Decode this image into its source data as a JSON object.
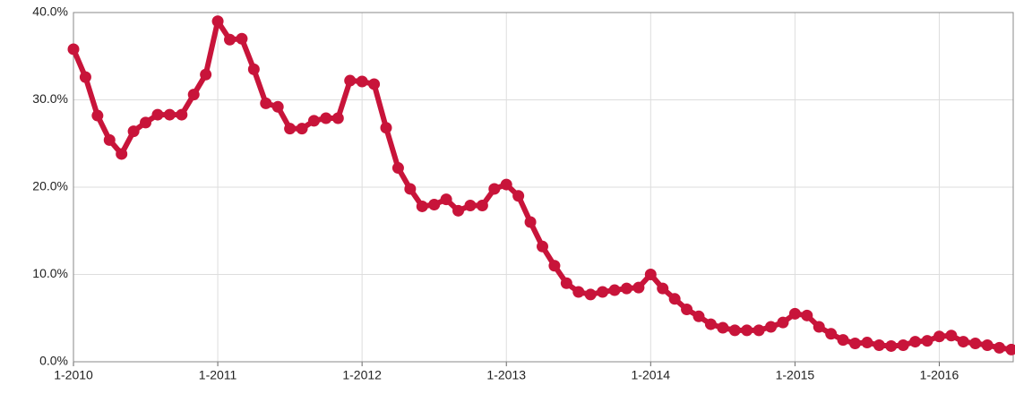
{
  "chart_data": {
    "type": "line",
    "categories": [
      "1-2010",
      null,
      null,
      null,
      null,
      null,
      null,
      null,
      null,
      null,
      null,
      null,
      "1-2011",
      null,
      null,
      null,
      null,
      null,
      null,
      null,
      null,
      null,
      null,
      null,
      "1-2012",
      null,
      null,
      null,
      null,
      null,
      null,
      null,
      null,
      null,
      null,
      null,
      "1-2013",
      null,
      null,
      null,
      null,
      null,
      null,
      null,
      null,
      null,
      null,
      null,
      "1-2014",
      null,
      null,
      null,
      null,
      null,
      null,
      null,
      null,
      null,
      null,
      null,
      "1-2015",
      null,
      null,
      null,
      null,
      null,
      null,
      null,
      null,
      null,
      null,
      null,
      "1-2016",
      null,
      null,
      null,
      null,
      null,
      null
    ],
    "series": [
      {
        "color": "#c8143a",
        "values": [
          35.8,
          32.6,
          28.2,
          25.4,
          23.8,
          26.4,
          27.4,
          28.3,
          28.3,
          28.3,
          30.6,
          32.9,
          39.0,
          36.9,
          37.0,
          33.5,
          29.6,
          29.2,
          26.7,
          26.7,
          27.6,
          27.9,
          27.9,
          32.2,
          32.1,
          31.8,
          26.8,
          22.2,
          19.8,
          17.8,
          18.0,
          18.6,
          17.3,
          17.9,
          17.9,
          19.8,
          20.3,
          19.0,
          16.0,
          13.2,
          11.0,
          9.0,
          8.0,
          7.7,
          8.0,
          8.2,
          8.4,
          8.5,
          10.0,
          8.4,
          7.2,
          6.0,
          5.2,
          4.3,
          3.9,
          3.6,
          3.6,
          3.6,
          4.0,
          4.5,
          5.5,
          5.3,
          4.0,
          3.2,
          2.5,
          2.1,
          2.2,
          1.9,
          1.8,
          1.9,
          2.3,
          2.4,
          2.9,
          3.0,
          2.3,
          2.1,
          1.9,
          1.6,
          1.4
        ]
      }
    ],
    "ylim": [
      0,
      40
    ],
    "yticks": [
      {
        "value": 0,
        "label": "0.0%"
      },
      {
        "value": 10,
        "label": "10.0%"
      },
      {
        "value": 20,
        "label": "20.0%"
      },
      {
        "value": 30,
        "label": "30.0%"
      },
      {
        "value": 40,
        "label": "40.0%"
      }
    ],
    "grid": true
  }
}
